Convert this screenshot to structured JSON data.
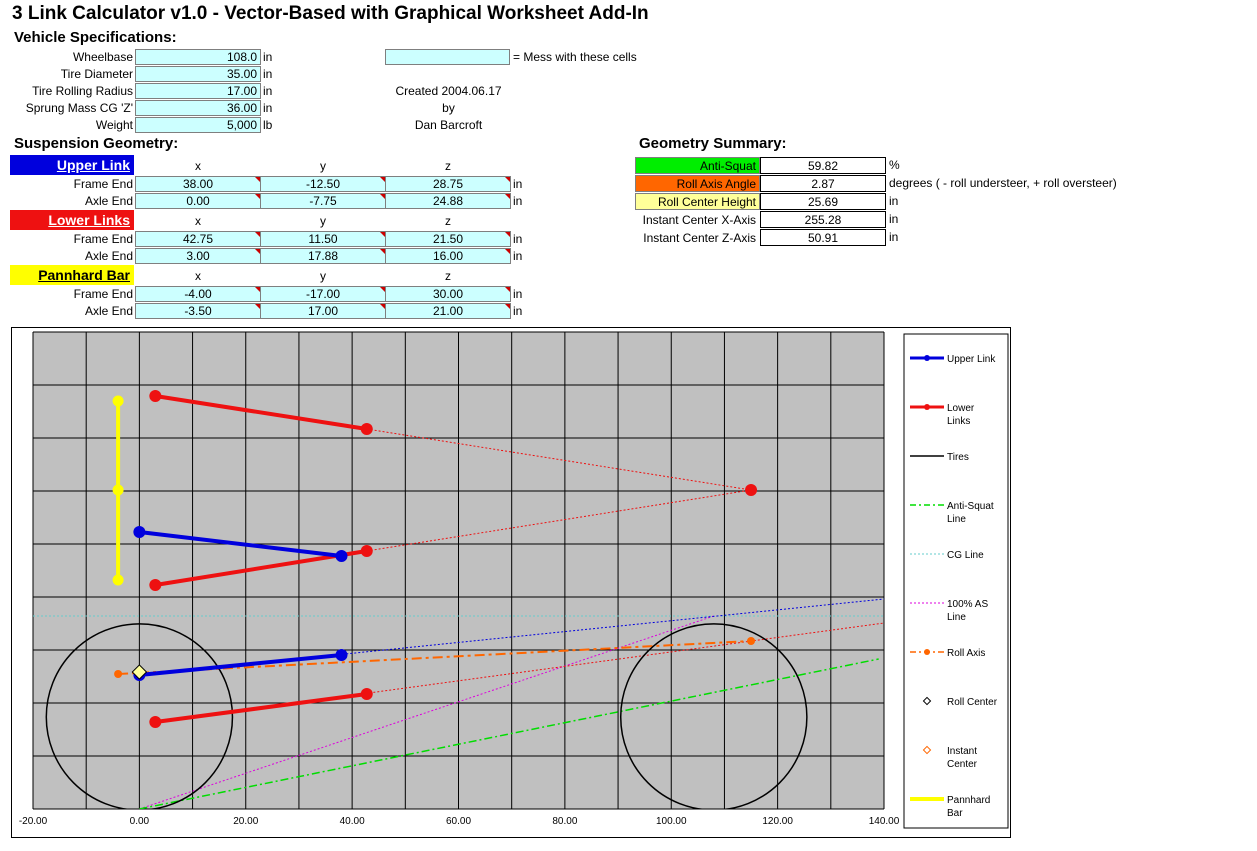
{
  "title": "3 Link Calculator v1.0  -  Vector-Based with Graphical Worksheet Add-In",
  "vehicle": {
    "header": "Vehicle Specifications:",
    "rows": [
      {
        "label": "Wheelbase",
        "value": "108.0",
        "unit": "in"
      },
      {
        "label": "Tire Diameter",
        "value": "35.00",
        "unit": "in"
      },
      {
        "label": "Tire Rolling Radius",
        "value": "17.00",
        "unit": "in"
      },
      {
        "label": "Sprung Mass CG 'Z'",
        "value": "36.00",
        "unit": "in"
      },
      {
        "label": "Weight",
        "value": "5,000",
        "unit": "lb"
      }
    ]
  },
  "legend_note": {
    "text": "= Mess with these cells"
  },
  "credit": {
    "created": "Created 2004.06.17",
    "by": "by",
    "author": "Dan Barcroft"
  },
  "suspension": {
    "header": "Suspension Geometry:",
    "col_x": "x",
    "col_y": "y",
    "col_z": "z",
    "frame_end": "Frame End",
    "axle_end": "Axle End",
    "unit": "in",
    "upper": {
      "name": "Upper Link",
      "color": "#0000dd",
      "text_color": "#ffffff",
      "frame": [
        "38.00",
        "-12.50",
        "28.75"
      ],
      "axle": [
        "0.00",
        "-7.75",
        "24.88"
      ]
    },
    "lower": {
      "name": "Lower Links",
      "color": "#ee1111",
      "text_color": "#ffffff",
      "frame": [
        "42.75",
        "11.50",
        "21.50"
      ],
      "axle": [
        "3.00",
        "17.88",
        "16.00"
      ]
    },
    "pannhard": {
      "name": "Pannhard Bar",
      "color": "#ffff00",
      "text_color": "#000000",
      "frame": [
        "-4.00",
        "-17.00",
        "30.00"
      ],
      "axle": [
        "-3.50",
        "17.00",
        "21.00"
      ]
    }
  },
  "summary": {
    "header": "Geometry Summary:",
    "rows": [
      {
        "label": "Anti-Squat",
        "value": "59.82",
        "unit": "%",
        "bg": "#00ee00"
      },
      {
        "label": "Roll Axis Angle",
        "value": "2.87",
        "unit": "degrees ( - roll understeer, + roll oversteer)",
        "bg": "#ff6600"
      },
      {
        "label": "Roll Center Height",
        "value": "25.69",
        "unit": "in",
        "bg": "#ffff99"
      },
      {
        "label": "Instant Center X-Axis",
        "value": "255.28",
        "unit": "in",
        "bg": "#ffffff"
      },
      {
        "label": "Instant Center Z-Axis",
        "value": "50.91",
        "unit": "in",
        "bg": "#ffffff"
      }
    ]
  },
  "chart_data": {
    "type": "scatter",
    "xlim": [
      -20,
      140
    ],
    "x_ticks": [
      "-20.00",
      "0.00",
      "20.00",
      "40.00",
      "60.00",
      "80.00",
      "100.00",
      "120.00",
      "140.00"
    ],
    "grid": true,
    "legend_position": "right",
    "plot_bg": "#c0c0c0",
    "series": [
      {
        "name": "Upper Link",
        "color": "#0000dd",
        "points": [
          [
            0,
            -7.75
          ],
          [
            38,
            -12.5
          ],
          [
            0,
            24.88
          ],
          [
            38,
            28.75
          ]
        ]
      },
      {
        "name": "Lower Links",
        "color": "#ee1111",
        "points": [
          [
            3,
            17.88
          ],
          [
            42.75,
            11.5
          ],
          [
            3,
            -17.88
          ],
          [
            42.75,
            -11.5
          ],
          [
            3,
            16
          ],
          [
            42.75,
            21.5
          ]
        ]
      },
      {
        "name": "Tires",
        "color": "#000000",
        "circles": [
          {
            "cx": 0,
            "cy": 17.5,
            "r": 17.5
          },
          {
            "cx": 108,
            "cy": 17.5,
            "r": 17.5
          }
        ]
      },
      {
        "name": "Anti-Squat Line",
        "color": "#00dd00",
        "points": [
          [
            0,
            0
          ],
          [
            139,
            28
          ]
        ]
      },
      {
        "name": "CG Line",
        "color": "#66cccc",
        "points": [
          [
            -20,
            36
          ],
          [
            140,
            36
          ]
        ]
      },
      {
        "name": "100% AS Line",
        "color": "#dd00dd",
        "points": [
          [
            0,
            0
          ],
          [
            108,
            36
          ]
        ]
      },
      {
        "name": "Roll Axis",
        "color": "#ff6600",
        "points": [
          [
            -4,
            25.5
          ],
          [
            115,
            31.5
          ]
        ]
      },
      {
        "name": "Roll Center",
        "color": "#000000",
        "points": [
          [
            0,
            25.69
          ]
        ]
      },
      {
        "name": "Instant Center",
        "color": "#ff6600",
        "points": []
      },
      {
        "name": "Pannhard Bar",
        "color": "#ffff00",
        "points": [
          [
            -4,
            -17
          ],
          [
            -4,
            0
          ],
          [
            -4,
            17
          ]
        ]
      }
    ],
    "legend": [
      {
        "name": "Upper Link",
        "lines": [
          "Upper Link"
        ],
        "style": "thickdot",
        "color": "#0000dd"
      },
      {
        "name": "Lower Links",
        "lines": [
          "Lower",
          "Links"
        ],
        "style": "thickdot",
        "color": "#ee1111"
      },
      {
        "name": "Tires",
        "lines": [
          "Tires"
        ],
        "style": "solid",
        "color": "#000000"
      },
      {
        "name": "Anti-Squat Line",
        "lines": [
          "Anti-Squat",
          "Line"
        ],
        "style": "dashdot",
        "color": "#00dd00"
      },
      {
        "name": "CG Line",
        "lines": [
          "CG Line"
        ],
        "style": "dot",
        "color": "#66cccc"
      },
      {
        "name": "100% AS Line",
        "lines": [
          "100% AS",
          "Line"
        ],
        "style": "dot",
        "color": "#dd00dd"
      },
      {
        "name": "Roll Axis",
        "lines": [
          "Roll Axis"
        ],
        "style": "dashdotmarker",
        "color": "#ff6600"
      },
      {
        "name": "Roll Center",
        "lines": [
          "Roll Center"
        ],
        "style": "diamond",
        "color": "#000000"
      },
      {
        "name": "Instant Center",
        "lines": [
          "Instant",
          "Center"
        ],
        "style": "diamond",
        "color": "#ff6600"
      },
      {
        "name": "Pannhard Bar",
        "lines": [
          "Pannhard",
          "Bar"
        ],
        "style": "thick",
        "color": "#ffff00"
      }
    ]
  }
}
